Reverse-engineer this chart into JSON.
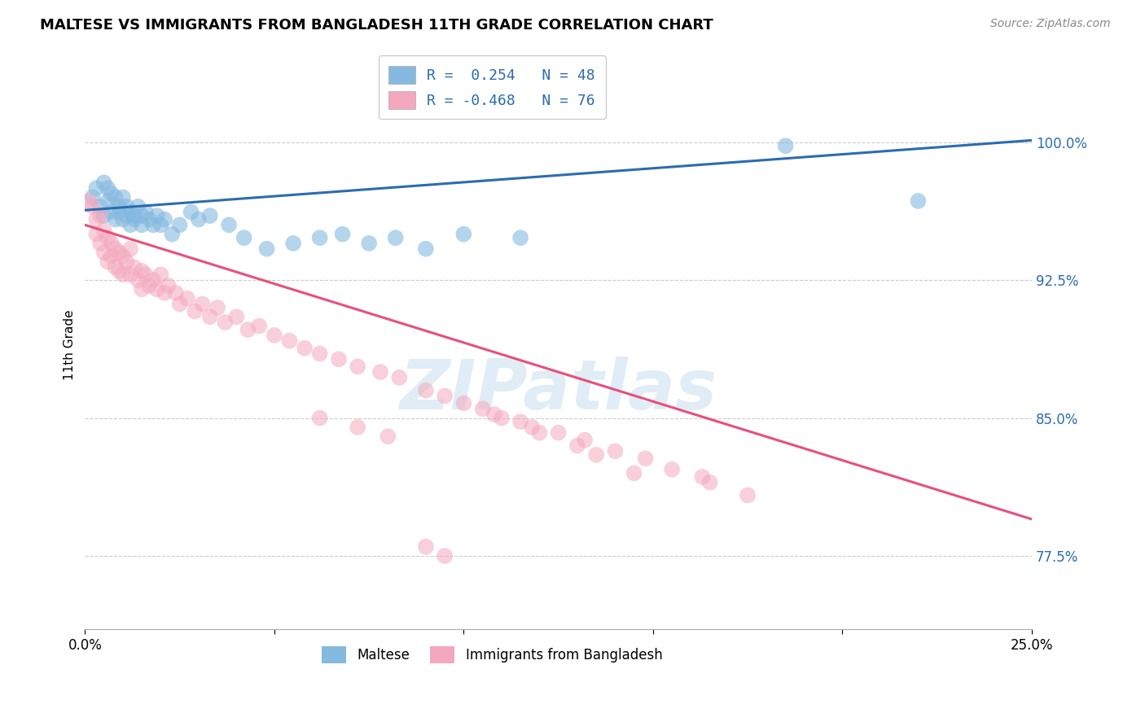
{
  "title": "MALTESE VS IMMIGRANTS FROM BANGLADESH 11TH GRADE CORRELATION CHART",
  "source": "Source: ZipAtlas.com",
  "ylabel": "11th Grade",
  "ytick_labels": [
    "77.5%",
    "85.0%",
    "92.5%",
    "100.0%"
  ],
  "ytick_values": [
    0.775,
    0.85,
    0.925,
    1.0
  ],
  "xmin": 0.0,
  "xmax": 0.25,
  "ymin": 0.735,
  "ymax": 1.045,
  "legend_line1": "R =  0.254   N = 48",
  "legend_line2": "R = -0.468   N = 76",
  "blue_color": "#85b9e0",
  "pink_color": "#f4a8be",
  "line_blue": "#2b6cb0",
  "line_pink": "#e8507a",
  "text_blue": "#2b6cb0",
  "watermark": "ZIPatlas",
  "blue_scatter_x": [
    0.002,
    0.003,
    0.004,
    0.005,
    0.005,
    0.006,
    0.006,
    0.007,
    0.007,
    0.008,
    0.008,
    0.009,
    0.009,
    0.01,
    0.01,
    0.011,
    0.011,
    0.012,
    0.012,
    0.013,
    0.013,
    0.014,
    0.015,
    0.015,
    0.016,
    0.017,
    0.018,
    0.019,
    0.02,
    0.021,
    0.023,
    0.025,
    0.028,
    0.03,
    0.033,
    0.038,
    0.042,
    0.048,
    0.055,
    0.062,
    0.068,
    0.075,
    0.082,
    0.09,
    0.1,
    0.115,
    0.185,
    0.22
  ],
  "blue_scatter_y": [
    0.97,
    0.975,
    0.965,
    0.978,
    0.96,
    0.975,
    0.968,
    0.972,
    0.962,
    0.97,
    0.958,
    0.965,
    0.962,
    0.97,
    0.958,
    0.965,
    0.96,
    0.962,
    0.955,
    0.96,
    0.958,
    0.965,
    0.96,
    0.955,
    0.962,
    0.958,
    0.955,
    0.96,
    0.955,
    0.958,
    0.95,
    0.955,
    0.962,
    0.958,
    0.96,
    0.955,
    0.948,
    0.942,
    0.945,
    0.948,
    0.95,
    0.945,
    0.948,
    0.942,
    0.95,
    0.948,
    0.998,
    0.968
  ],
  "pink_scatter_x": [
    0.001,
    0.002,
    0.003,
    0.003,
    0.004,
    0.004,
    0.005,
    0.005,
    0.006,
    0.006,
    0.007,
    0.007,
    0.008,
    0.008,
    0.009,
    0.009,
    0.01,
    0.01,
    0.011,
    0.012,
    0.012,
    0.013,
    0.014,
    0.015,
    0.015,
    0.016,
    0.017,
    0.018,
    0.019,
    0.02,
    0.021,
    0.022,
    0.024,
    0.025,
    0.027,
    0.029,
    0.031,
    0.033,
    0.035,
    0.037,
    0.04,
    0.043,
    0.046,
    0.05,
    0.054,
    0.058,
    0.062,
    0.067,
    0.072,
    0.078,
    0.083,
    0.09,
    0.095,
    0.1,
    0.105,
    0.11,
    0.118,
    0.125,
    0.132,
    0.14,
    0.148,
    0.155,
    0.163,
    0.115,
    0.12,
    0.13,
    0.135,
    0.145,
    0.165,
    0.175,
    0.108,
    0.062,
    0.072,
    0.08,
    0.09,
    0.095
  ],
  "pink_scatter_y": [
    0.968,
    0.965,
    0.958,
    0.95,
    0.96,
    0.945,
    0.952,
    0.94,
    0.948,
    0.935,
    0.945,
    0.938,
    0.942,
    0.932,
    0.94,
    0.93,
    0.938,
    0.928,
    0.935,
    0.942,
    0.928,
    0.932,
    0.925,
    0.93,
    0.92,
    0.928,
    0.922,
    0.925,
    0.92,
    0.928,
    0.918,
    0.922,
    0.918,
    0.912,
    0.915,
    0.908,
    0.912,
    0.905,
    0.91,
    0.902,
    0.905,
    0.898,
    0.9,
    0.895,
    0.892,
    0.888,
    0.885,
    0.882,
    0.878,
    0.875,
    0.872,
    0.865,
    0.862,
    0.858,
    0.855,
    0.85,
    0.845,
    0.842,
    0.838,
    0.832,
    0.828,
    0.822,
    0.818,
    0.848,
    0.842,
    0.835,
    0.83,
    0.82,
    0.815,
    0.808,
    0.852,
    0.85,
    0.845,
    0.84,
    0.78,
    0.775
  ],
  "blue_line_x": [
    0.0,
    0.25
  ],
  "blue_line_y": [
    0.963,
    1.001
  ],
  "pink_line_x": [
    0.0,
    0.25
  ],
  "pink_line_y": [
    0.955,
    0.795
  ]
}
